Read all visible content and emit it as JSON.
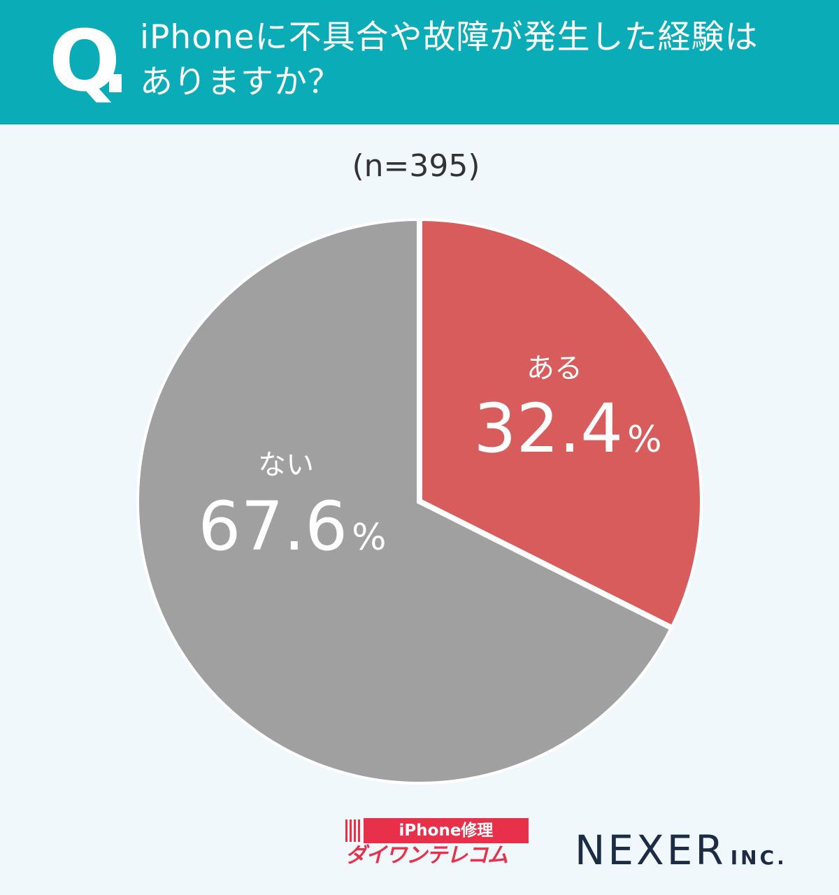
{
  "header": {
    "q_letter": "Q",
    "question_line1": "iPhoneに不具合や故障が発生した経験は",
    "question_line2": "ありますか？",
    "background_color": "#0aacb8"
  },
  "sample_size": "(n=395)",
  "chart_data": {
    "type": "pie",
    "title": "iPhoneに不具合や故障が発生した経験はありますか？",
    "n": 395,
    "start": "12 o'clock, clockwise",
    "slices": [
      {
        "label": "ある",
        "value": 32.4,
        "display": "32.4",
        "unit": "%",
        "color": "#d95c5c"
      },
      {
        "label": "ない",
        "value": 67.6,
        "display": "67.6",
        "unit": "%",
        "color": "#a0a0a0"
      }
    ],
    "label_color": "#ffffff",
    "separator_color": "#ffffff"
  },
  "logos": {
    "daiwan_top": "iPhone修理",
    "daiwan_bottom": "ダイワンテレコム",
    "daiwan_color": "#e8304a",
    "nexer_main": "NEXER",
    "nexer_inc": "INC.",
    "nexer_color": "#1d2c45"
  }
}
